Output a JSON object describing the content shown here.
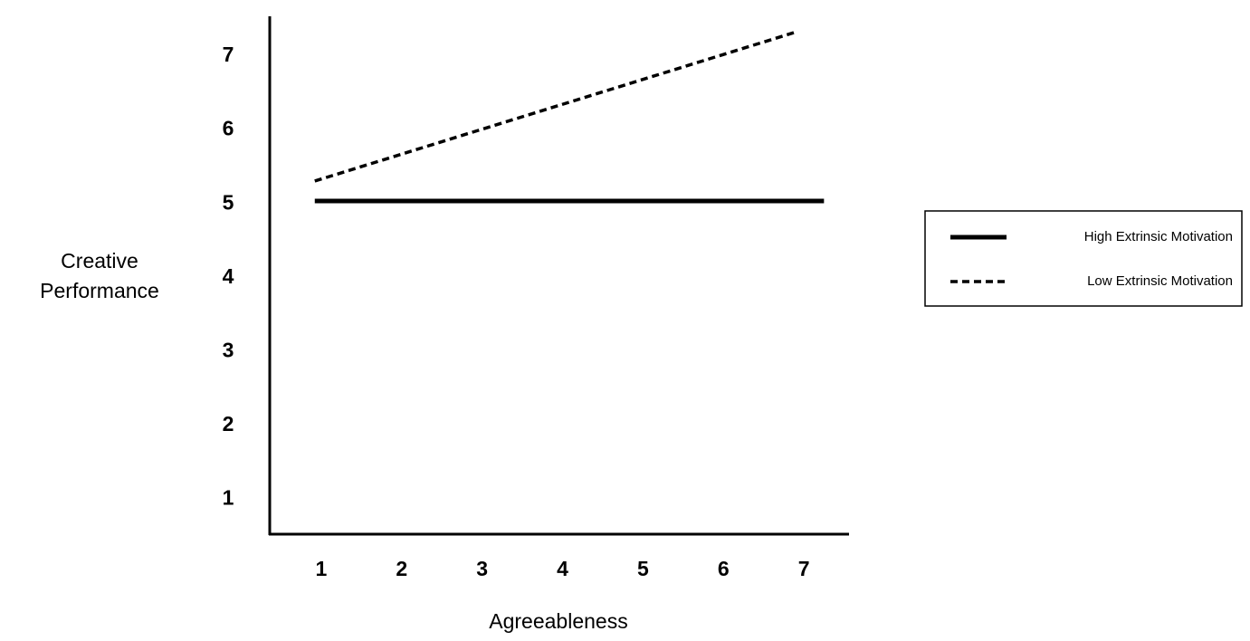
{
  "chart_data": {
    "type": "line",
    "xlabel": "Agreeableness",
    "ylabel": "Creative Performance",
    "xlim": [
      0.36,
      7.55
    ],
    "xticks": [
      1,
      2,
      3,
      4,
      5,
      6,
      7
    ],
    "ylim": [
      0.53,
      7.54
    ],
    "yticks": [
      1,
      2,
      3,
      4,
      5,
      6,
      7
    ],
    "grid": false,
    "legend": "right",
    "series": [
      {
        "name": "High Extrinsic Motivation",
        "color": "#000000",
        "style": "solid",
        "x": [
          0.92,
          7.25
        ],
        "values": [
          5.04,
          5.04
        ]
      },
      {
        "name": "Low Extrinsic Motivation",
        "color": "#000000",
        "style": "dashed",
        "x": [
          0.92,
          6.88
        ],
        "values": [
          5.31,
          7.32
        ]
      }
    ]
  }
}
